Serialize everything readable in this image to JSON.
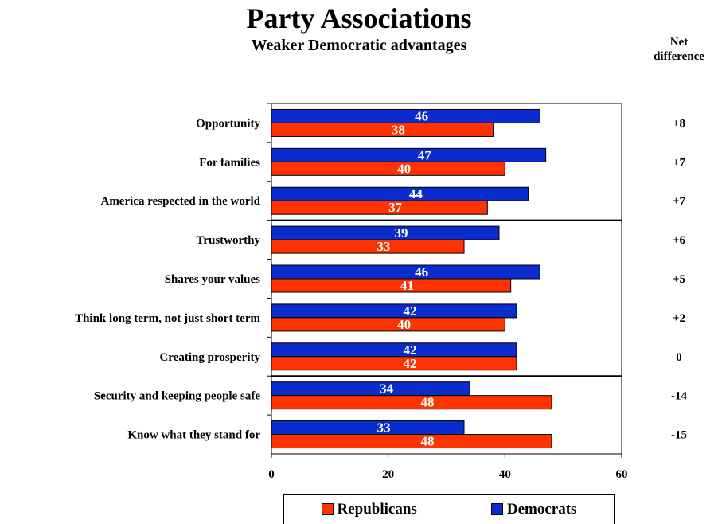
{
  "chart_data": {
    "type": "bar",
    "orientation": "horizontal",
    "title": "Party Associations",
    "subtitle": "Weaker Democratic advantages",
    "categories": [
      "Opportunity",
      "For families",
      "America respected in the world",
      "Trustworthy",
      "Shares your values",
      "Think long term, not just short term",
      "Creating prosperity",
      "Security and keeping people safe",
      "Know what they stand for"
    ],
    "series": [
      {
        "name": "Democrats",
        "color": "#0a2ccc",
        "values": [
          46,
          47,
          44,
          39,
          46,
          42,
          42,
          34,
          33
        ]
      },
      {
        "name": "Republicans",
        "color": "#ff3300",
        "values": [
          38,
          40,
          37,
          33,
          41,
          40,
          42,
          48,
          48
        ]
      }
    ],
    "net_difference_header": [
      "Net",
      "difference"
    ],
    "net_difference": [
      "+8",
      "+7",
      "+7",
      "+6",
      "+5",
      "+2",
      "0",
      "-14",
      "-15"
    ],
    "separators_after_index": [
      2,
      6
    ],
    "xlim": [
      0,
      60
    ],
    "xticks": [
      0,
      20,
      40,
      60
    ],
    "grid": false,
    "legend_position": "bottom",
    "legend": [
      "Republicans",
      "Democrats"
    ]
  }
}
